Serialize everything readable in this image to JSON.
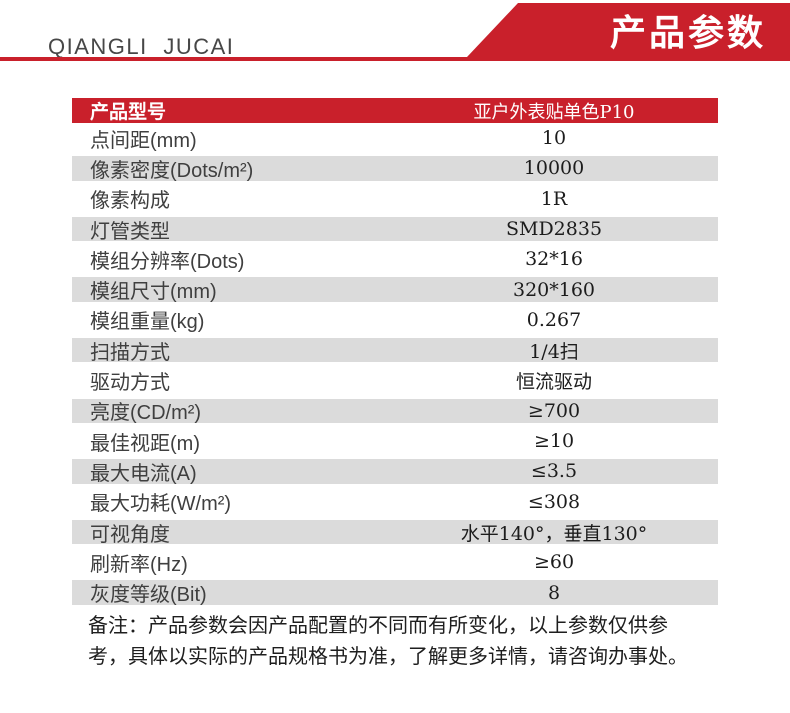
{
  "colors": {
    "accent_red": "#c9202b",
    "row_shade": "#dbdbdb",
    "label_text": "#3f3f3f",
    "value_text": "#1c1c1c"
  },
  "header": {
    "logo_text": "QIANGLI JUCAI",
    "banner_title": "产品参数"
  },
  "table": {
    "header": {
      "label": "产品型号",
      "value": "亚户外表贴单色P10"
    },
    "rows": [
      {
        "label": "点间距(mm)",
        "value": "10",
        "shaded": false
      },
      {
        "label": "像素密度(Dots/m²)",
        "value": "10000",
        "shaded": true
      },
      {
        "label": "像素构成",
        "value": "1R",
        "shaded": false
      },
      {
        "label": "灯管类型",
        "value": "SMD2835",
        "shaded": true
      },
      {
        "label": "模组分辨率(Dots)",
        "value": "32*16",
        "shaded": false
      },
      {
        "label": "模组尺寸(mm)",
        "value": "320*160",
        "shaded": true
      },
      {
        "label": "模组重量(kg)",
        "value": "0.267",
        "shaded": false
      },
      {
        "label": "扫描方式",
        "value": "1/4扫",
        "shaded": true
      },
      {
        "label": "驱动方式",
        "value": "恒流驱动",
        "shaded": false
      },
      {
        "label": "亮度(CD/m²)",
        "value": "≥700",
        "shaded": true
      },
      {
        "label": "最佳视距(m)",
        "value": "≥10",
        "shaded": false
      },
      {
        "label": "最大电流(A)",
        "value": "≤3.5",
        "shaded": true
      },
      {
        "label": "最大功耗(W/m²)",
        "value": "≤308",
        "shaded": false
      },
      {
        "label": "可视角度",
        "value": "水平140°，垂直130°",
        "shaded": true
      },
      {
        "label": "刷新率(Hz)",
        "value": "≥60",
        "shaded": false
      },
      {
        "label": "灰度等级(Bit)",
        "value": "8",
        "shaded": true
      }
    ]
  },
  "note": {
    "line1": "备注：产品参数会因产品配置的不同而有所变化，以上参数仅供参",
    "line2": "考，具体以实际的产品规格书为准，了解更多详情，请咨询办事处。"
  }
}
